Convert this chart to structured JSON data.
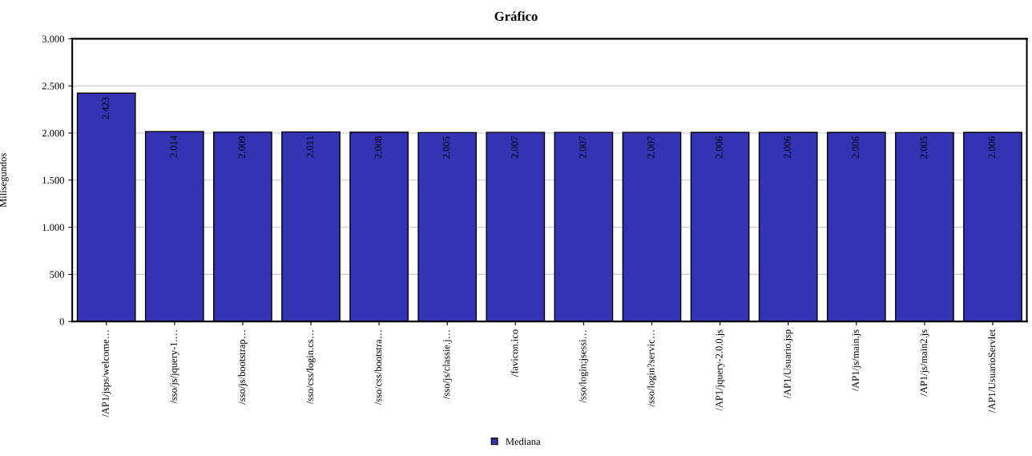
{
  "chart_data": {
    "type": "bar",
    "title": "Gráfico",
    "ylabel": "Milisegundos",
    "categories": [
      "/AP1/jsps/welcome…",
      "/sso/js/jquery-1.…",
      "/sso/js/bootstrap…",
      "/sso/css/login.cs…",
      "/sso/css/bootstra…",
      "/sso/js/classie.j…",
      "/favicon.ico",
      "/sso/login;jsessi…",
      "/sso/login?servic…",
      "/AP1/jquery-2.0.0.js",
      "/AP1/Usuario.jsp",
      "/AP1/js/main.js",
      "/AP1/js/main2.js",
      "/AP1/UsuarioServlet"
    ],
    "series": [
      {
        "name": "Mediana",
        "color": "#3333b3",
        "values": [
          2423,
          2014,
          2009,
          2011,
          2008,
          2005,
          2007,
          2007,
          2007,
          2006,
          2006,
          2006,
          2005,
          2006
        ],
        "value_labels": [
          "2.423",
          "2.014",
          "2.009",
          "2.011",
          "2.008",
          "2.005",
          "2.007",
          "2.007",
          "2.007",
          "2.006",
          "2.006",
          "2.006",
          "2.005",
          "2.006"
        ]
      }
    ],
    "ylim": [
      0,
      3000
    ],
    "yticks": [
      {
        "value": 0,
        "label": "0"
      },
      {
        "value": 500,
        "label": "500"
      },
      {
        "value": 1000,
        "label": "1.000"
      },
      {
        "value": 1500,
        "label": "1.500"
      },
      {
        "value": 2000,
        "label": "2.000"
      },
      {
        "value": 2500,
        "label": "2.500"
      },
      {
        "value": 3000,
        "label": "3.000"
      }
    ],
    "grid": "y",
    "legend": "bottom"
  }
}
